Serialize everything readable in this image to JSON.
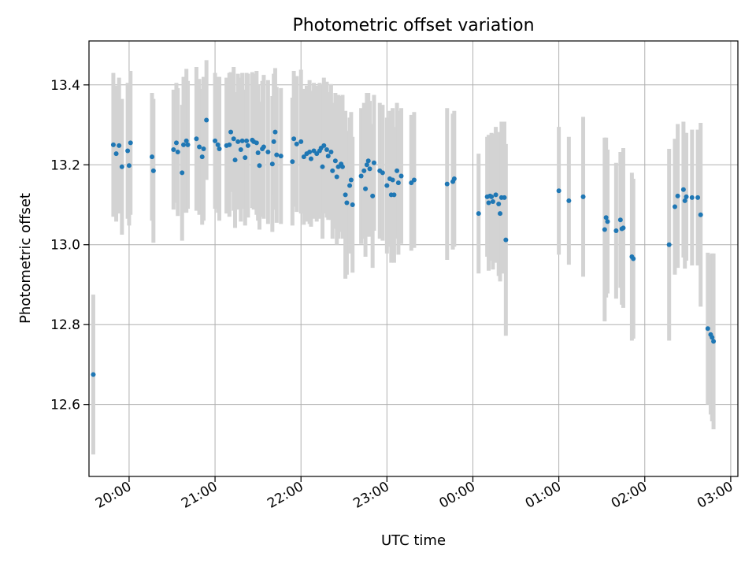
{
  "chart_data": {
    "type": "scatter",
    "title": "Photometric offset variation",
    "xlabel": "UTC time",
    "ylabel": "Photometric offset",
    "x_unit": "UTC time (hh:mm), times after 24:00 fall on the following day",
    "x_ticks": [
      "20:00",
      "21:00",
      "22:00",
      "23:00",
      "00:00",
      "01:00",
      "02:00",
      "03:00"
    ],
    "y_ticks": [
      12.6,
      12.8,
      13.0,
      13.2,
      13.4
    ],
    "xlim": [
      "19:32",
      "27:05"
    ],
    "ylim": [
      12.42,
      13.51
    ],
    "grid": true,
    "colors": {
      "point": "#1f77b4",
      "errorbar": "#d3d3d3",
      "grid": "#b0b0b0"
    },
    "points": [
      {
        "x": "19:35",
        "y": 12.675,
        "err": 0.2
      },
      {
        "x": "19:49",
        "y": 13.25,
        "err": 0.18
      },
      {
        "x": "19:51",
        "y": 13.228,
        "err": 0.17
      },
      {
        "x": "19:53",
        "y": 13.248,
        "err": 0.17
      },
      {
        "x": "19:55",
        "y": 13.195,
        "err": 0.17
      },
      {
        "x": "19:59",
        "y": 13.235,
        "err": 0.17
      },
      {
        "x": "20:00",
        "y": 13.198,
        "err": 0.15
      },
      {
        "x": "20:01",
        "y": 13.255,
        "err": 0.18
      },
      {
        "x": "20:16",
        "y": 13.22,
        "err": 0.16
      },
      {
        "x": "20:17",
        "y": 13.185,
        "err": 0.18
      },
      {
        "x": "20:31",
        "y": 13.238,
        "err": 0.15
      },
      {
        "x": "20:33",
        "y": 13.255,
        "err": 0.15
      },
      {
        "x": "20:34",
        "y": 13.232,
        "err": 0.16
      },
      {
        "x": "20:37",
        "y": 13.18,
        "err": 0.17
      },
      {
        "x": "20:38",
        "y": 13.25,
        "err": 0.17
      },
      {
        "x": "20:40",
        "y": 13.26,
        "err": 0.18
      },
      {
        "x": "20:41",
        "y": 13.25,
        "err": 0.16
      },
      {
        "x": "20:47",
        "y": 13.265,
        "err": 0.18
      },
      {
        "x": "20:49",
        "y": 13.245,
        "err": 0.17
      },
      {
        "x": "20:51",
        "y": 13.22,
        "err": 0.17
      },
      {
        "x": "20:52",
        "y": 13.24,
        "err": 0.18
      },
      {
        "x": "20:54",
        "y": 13.312,
        "err": 0.15
      },
      {
        "x": "21:00",
        "y": 13.26,
        "err": 0.17
      },
      {
        "x": "21:02",
        "y": 13.25,
        "err": 0.17
      },
      {
        "x": "21:03",
        "y": 13.24,
        "err": 0.18
      },
      {
        "x": "21:08",
        "y": 13.248,
        "err": 0.17
      },
      {
        "x": "21:10",
        "y": 13.25,
        "err": 0.18
      },
      {
        "x": "21:11",
        "y": 13.282,
        "err": 0.15
      },
      {
        "x": "21:13",
        "y": 13.265,
        "err": 0.18
      },
      {
        "x": "21:14",
        "y": 13.212,
        "err": 0.17
      },
      {
        "x": "21:16",
        "y": 13.258,
        "err": 0.17
      },
      {
        "x": "21:18",
        "y": 13.238,
        "err": 0.18
      },
      {
        "x": "21:19",
        "y": 13.26,
        "err": 0.17
      },
      {
        "x": "21:21",
        "y": 13.218,
        "err": 0.17
      },
      {
        "x": "21:22",
        "y": 13.26,
        "err": 0.17
      },
      {
        "x": "21:23",
        "y": 13.248,
        "err": 0.18
      },
      {
        "x": "21:26",
        "y": 13.262,
        "err": 0.17
      },
      {
        "x": "21:27",
        "y": 13.258,
        "err": 0.17
      },
      {
        "x": "21:29",
        "y": 13.255,
        "err": 0.18
      },
      {
        "x": "21:30",
        "y": 13.23,
        "err": 0.17
      },
      {
        "x": "21:31",
        "y": 13.198,
        "err": 0.16
      },
      {
        "x": "21:33",
        "y": 13.24,
        "err": 0.17
      },
      {
        "x": "21:34",
        "y": 13.245,
        "err": 0.18
      },
      {
        "x": "21:37",
        "y": 13.232,
        "err": 0.18
      },
      {
        "x": "21:40",
        "y": 13.202,
        "err": 0.17
      },
      {
        "x": "21:41",
        "y": 13.258,
        "err": 0.17
      },
      {
        "x": "21:42",
        "y": 13.282,
        "err": 0.16
      },
      {
        "x": "21:43",
        "y": 13.225,
        "err": 0.17
      },
      {
        "x": "21:46",
        "y": 13.222,
        "err": 0.17
      },
      {
        "x": "21:54",
        "y": 13.208,
        "err": 0.16
      },
      {
        "x": "21:55",
        "y": 13.265,
        "err": 0.17
      },
      {
        "x": "21:57",
        "y": 13.252,
        "err": 0.17
      },
      {
        "x": "22:00",
        "y": 13.258,
        "err": 0.18
      },
      {
        "x": "22:02",
        "y": 13.22,
        "err": 0.17
      },
      {
        "x": "22:04",
        "y": 13.228,
        "err": 0.17
      },
      {
        "x": "22:06",
        "y": 13.232,
        "err": 0.18
      },
      {
        "x": "22:07",
        "y": 13.215,
        "err": 0.17
      },
      {
        "x": "22:09",
        "y": 13.235,
        "err": 0.17
      },
      {
        "x": "22:11",
        "y": 13.228,
        "err": 0.17
      },
      {
        "x": "22:13",
        "y": 13.235,
        "err": 0.17
      },
      {
        "x": "22:14",
        "y": 13.242,
        "err": 0.16
      },
      {
        "x": "22:15",
        "y": 13.195,
        "err": 0.18
      },
      {
        "x": "22:16",
        "y": 13.248,
        "err": 0.17
      },
      {
        "x": "22:18",
        "y": 13.238,
        "err": 0.17
      },
      {
        "x": "22:19",
        "y": 13.222,
        "err": 0.16
      },
      {
        "x": "22:21",
        "y": 13.232,
        "err": 0.17
      },
      {
        "x": "22:22",
        "y": 13.185,
        "err": 0.17
      },
      {
        "x": "22:24",
        "y": 13.21,
        "err": 0.17
      },
      {
        "x": "22:25",
        "y": 13.17,
        "err": 0.17
      },
      {
        "x": "22:26",
        "y": 13.195,
        "err": 0.18
      },
      {
        "x": "22:28",
        "y": 13.202,
        "err": 0.17
      },
      {
        "x": "22:29",
        "y": 13.195,
        "err": 0.18
      },
      {
        "x": "22:31",
        "y": 13.125,
        "err": 0.21
      },
      {
        "x": "22:32",
        "y": 13.105,
        "err": 0.18
      },
      {
        "x": "22:34",
        "y": 13.148,
        "err": 0.17
      },
      {
        "x": "22:35",
        "y": 13.162,
        "err": 0.17
      },
      {
        "x": "22:36",
        "y": 13.1,
        "err": 0.17
      },
      {
        "x": "22:42",
        "y": 13.172,
        "err": 0.17
      },
      {
        "x": "22:44",
        "y": 13.185,
        "err": 0.17
      },
      {
        "x": "22:45",
        "y": 13.14,
        "err": 0.17
      },
      {
        "x": "22:46",
        "y": 13.2,
        "err": 0.18
      },
      {
        "x": "22:47",
        "y": 13.21,
        "err": 0.17
      },
      {
        "x": "22:48",
        "y": 13.19,
        "err": 0.17
      },
      {
        "x": "22:50",
        "y": 13.122,
        "err": 0.18
      },
      {
        "x": "22:51",
        "y": 13.205,
        "err": 0.17
      },
      {
        "x": "22:55",
        "y": 13.185,
        "err": 0.17
      },
      {
        "x": "22:57",
        "y": 13.18,
        "err": 0.17
      },
      {
        "x": "23:00",
        "y": 13.148,
        "err": 0.17
      },
      {
        "x": "23:02",
        "y": 13.165,
        "err": 0.17
      },
      {
        "x": "23:03",
        "y": 13.125,
        "err": 0.17
      },
      {
        "x": "23:04",
        "y": 13.162,
        "err": 0.18
      },
      {
        "x": "23:05",
        "y": 13.125,
        "err": 0.17
      },
      {
        "x": "23:07",
        "y": 13.185,
        "err": 0.17
      },
      {
        "x": "23:08",
        "y": 13.155,
        "err": 0.18
      },
      {
        "x": "23:10",
        "y": 13.172,
        "err": 0.17
      },
      {
        "x": "23:17",
        "y": 13.155,
        "err": 0.17
      },
      {
        "x": "23:19",
        "y": 13.162,
        "err": 0.17
      },
      {
        "x": "23:42",
        "y": 13.152,
        "err": 0.19
      },
      {
        "x": "23:46",
        "y": 13.158,
        "err": 0.17
      },
      {
        "x": "23:47",
        "y": 13.165,
        "err": 0.17
      },
      {
        "x": "24:04",
        "y": 13.078,
        "err": 0.15
      },
      {
        "x": "24:10",
        "y": 13.12,
        "err": 0.15
      },
      {
        "x": "24:11",
        "y": 13.105,
        "err": 0.17
      },
      {
        "x": "24:12",
        "y": 13.122,
        "err": 0.15
      },
      {
        "x": "24:13",
        "y": 13.12,
        "err": 0.16
      },
      {
        "x": "24:14",
        "y": 13.108,
        "err": 0.17
      },
      {
        "x": "24:16",
        "y": 13.125,
        "err": 0.17
      },
      {
        "x": "24:18",
        "y": 13.102,
        "err": 0.18
      },
      {
        "x": "24:19",
        "y": 13.078,
        "err": 0.17
      },
      {
        "x": "24:20",
        "y": 13.118,
        "err": 0.19
      },
      {
        "x": "24:22",
        "y": 13.118,
        "err": 0.19
      },
      {
        "x": "24:23",
        "y": 13.012,
        "err": 0.24
      },
      {
        "x": "25:00",
        "y": 13.135,
        "err": 0.16
      },
      {
        "x": "25:07",
        "y": 13.11,
        "err": 0.16
      },
      {
        "x": "25:17",
        "y": 13.12,
        "err": 0.2
      },
      {
        "x": "25:32",
        "y": 13.038,
        "err": 0.23
      },
      {
        "x": "25:33",
        "y": 13.068,
        "err": 0.2
      },
      {
        "x": "25:34",
        "y": 13.058,
        "err": 0.18
      },
      {
        "x": "25:40",
        "y": 13.035,
        "err": 0.17
      },
      {
        "x": "25:43",
        "y": 13.062,
        "err": 0.17
      },
      {
        "x": "25:44",
        "y": 13.04,
        "err": 0.19
      },
      {
        "x": "25:45",
        "y": 13.042,
        "err": 0.2
      },
      {
        "x": "25:51",
        "y": 12.97,
        "err": 0.21
      },
      {
        "x": "25:52",
        "y": 12.965,
        "err": 0.2
      },
      {
        "x": "26:17",
        "y": 13.0,
        "err": 0.24
      },
      {
        "x": "26:21",
        "y": 13.095,
        "err": 0.17
      },
      {
        "x": "26:23",
        "y": 13.122,
        "err": 0.18
      },
      {
        "x": "26:27",
        "y": 13.138,
        "err": 0.17
      },
      {
        "x": "26:28",
        "y": 13.11,
        "err": 0.17
      },
      {
        "x": "26:29",
        "y": 13.12,
        "err": 0.16
      },
      {
        "x": "26:33",
        "y": 13.118,
        "err": 0.17
      },
      {
        "x": "26:37",
        "y": 13.118,
        "err": 0.17
      },
      {
        "x": "26:39",
        "y": 13.075,
        "err": 0.23
      },
      {
        "x": "26:44",
        "y": 12.79,
        "err": 0.19
      },
      {
        "x": "26:46",
        "y": 12.775,
        "err": 0.2
      },
      {
        "x": "26:47",
        "y": 12.768,
        "err": 0.21
      },
      {
        "x": "26:48",
        "y": 12.758,
        "err": 0.22
      }
    ]
  }
}
